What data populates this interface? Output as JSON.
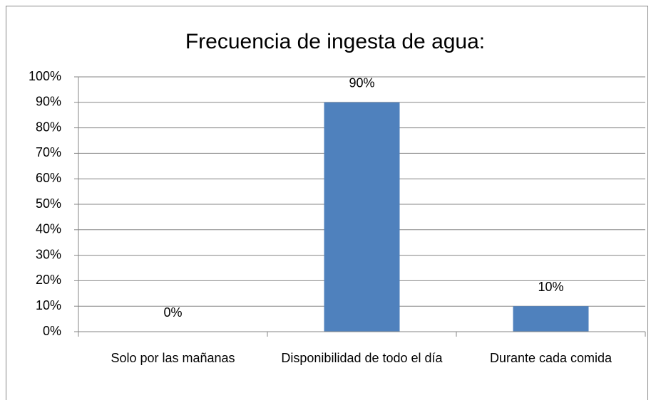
{
  "chart_data": {
    "type": "bar",
    "title": "Frecuencia de ingesta de agua:",
    "categories": [
      "Solo por las mañanas",
      "Disponibilidad de todo el día",
      "Durante cada comida"
    ],
    "values": [
      0,
      90,
      10
    ],
    "value_labels": [
      "0%",
      "90%",
      "10%"
    ],
    "color": "#4f81bd",
    "ylim": [
      0,
      100
    ],
    "yticks": [
      {
        "value": 0,
        "label": "0%"
      },
      {
        "value": 10,
        "label": "10%"
      },
      {
        "value": 20,
        "label": "20%"
      },
      {
        "value": 30,
        "label": "30%"
      },
      {
        "value": 40,
        "label": "40%"
      },
      {
        "value": 50,
        "label": "50%"
      },
      {
        "value": 60,
        "label": "60%"
      },
      {
        "value": 70,
        "label": "70%"
      },
      {
        "value": 80,
        "label": "80%"
      },
      {
        "value": 90,
        "label": "90%"
      },
      {
        "value": 100,
        "label": "100%"
      }
    ],
    "grid": true
  }
}
